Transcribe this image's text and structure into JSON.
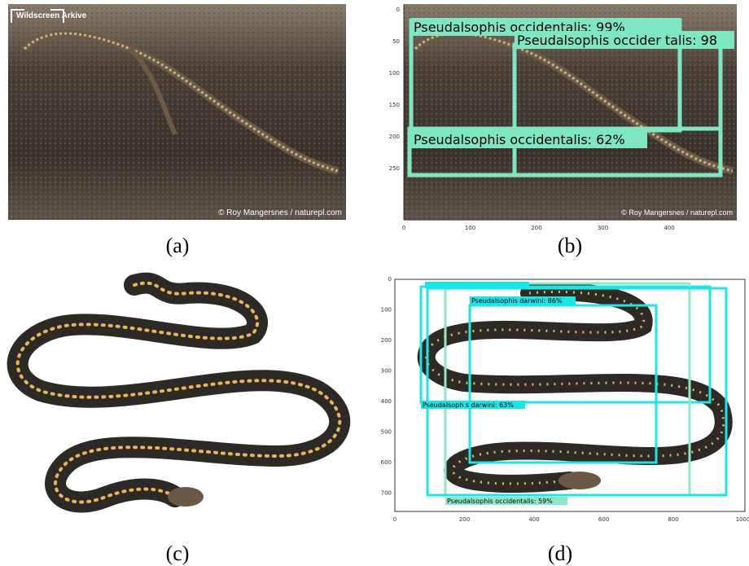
{
  "panels": [
    {
      "caption": "(a)",
      "watermark_top": "Wildscreen Arkive",
      "watermark_bottom": "© Roy Mangersnes / naturepl.com"
    },
    {
      "caption": "(b)",
      "watermark_bottom": "© Roy Mangersnes / naturepl.com",
      "xticks": [
        0,
        100,
        200,
        300,
        400
      ],
      "yticks": [
        0,
        50,
        100,
        150,
        200,
        250
      ],
      "detections": [
        "Pseudalsophis occidentalis: 99%",
        "Pseudalsophis occider talis: 98",
        "Pseudalsophis occidentalis: 62%"
      ]
    },
    {
      "caption": "(c)"
    },
    {
      "caption": "(d)",
      "xticks": [
        0,
        200,
        400,
        600,
        800,
        1000
      ],
      "yticks": [
        0,
        100,
        200,
        300,
        400,
        500,
        600,
        700
      ],
      "detections": [
        "Pseudalsophis darwini: 86%",
        "Pseudalsoph s darwini: 63%",
        "Pseudalsophis occidentalis: 59%"
      ]
    }
  ]
}
